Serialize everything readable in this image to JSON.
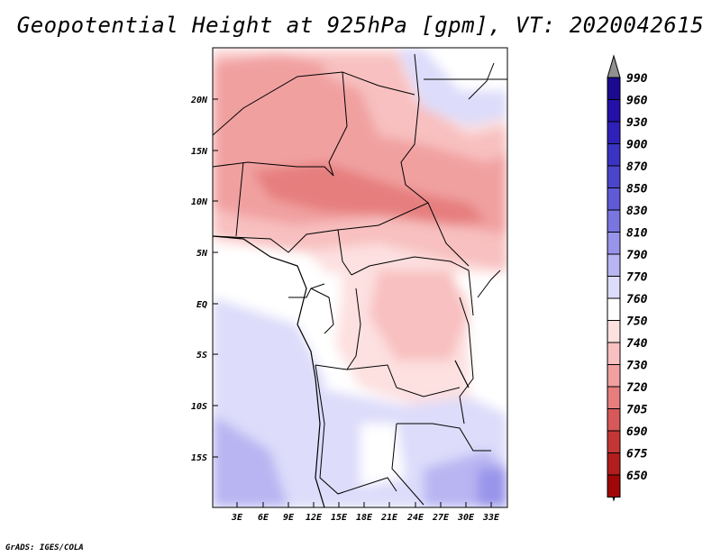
{
  "title": "Geopotential Height at 925hPa [gpm], VT: 2020042615",
  "credit": "GrADS: IGES/COLA",
  "map": {
    "lat_ticks": [
      "20N",
      "15N",
      "10N",
      "5N",
      "EQ",
      "5S",
      "10S",
      "15S"
    ],
    "lon_ticks": [
      "3E",
      "6E",
      "9E",
      "12E",
      "15E",
      "18E",
      "21E",
      "24E",
      "27E",
      "30E",
      "33E"
    ]
  },
  "legend": {
    "levels": [
      "990",
      "960",
      "930",
      "900",
      "870",
      "850",
      "830",
      "810",
      "790",
      "770",
      "760",
      "750",
      "740",
      "730",
      "720",
      "705",
      "690",
      "675",
      "650"
    ],
    "colors": [
      "#1a0a90",
      "#2310a8",
      "#2e20b8",
      "#3a33c4",
      "#4a46cc",
      "#5f5ad6",
      "#7a76e0",
      "#9894ea",
      "#b8b5f2",
      "#dddcfa",
      "#ffffff",
      "#fde0e0",
      "#f8c0c0",
      "#f1a0a0",
      "#e67e7e",
      "#d65858",
      "#c43636",
      "#b21d1d",
      "#a00808"
    ],
    "top_arrow_color": "#909090",
    "bottom_arrow_color": "#a00808"
  }
}
